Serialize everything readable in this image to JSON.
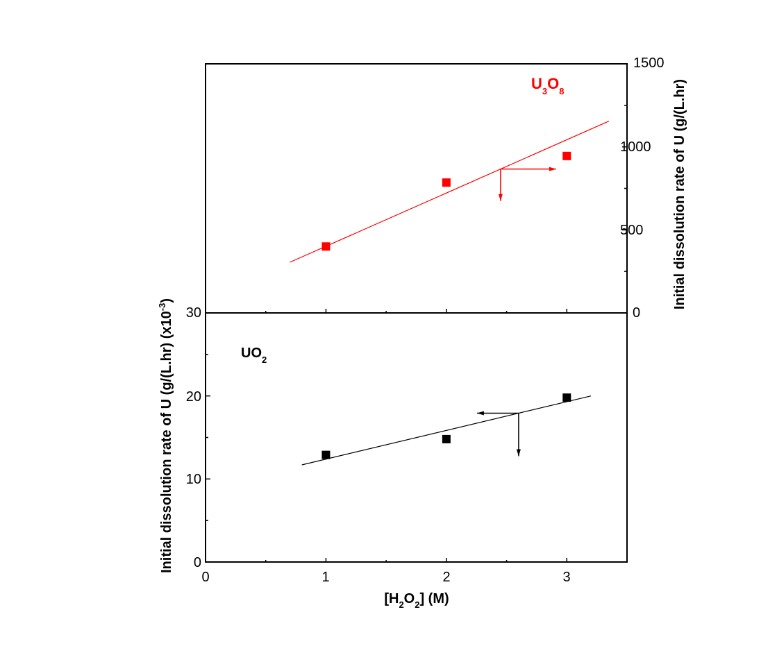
{
  "chart_data": [
    {
      "id": "top",
      "type": "scatter",
      "series": [
        {
          "name": "U3O8",
          "color": "#ff0000",
          "x": [
            1,
            2,
            3
          ],
          "y": [
            400,
            785,
            945
          ],
          "fit": {
            "x0": 0.7,
            "y0": 305,
            "x1": 3.35,
            "y1": 1155
          }
        }
      ],
      "label": {
        "main": "U",
        "sub1": "3",
        "mid": "O",
        "sub2": "8"
      },
      "xlim": [
        0,
        3.5
      ],
      "ylim": [
        0,
        1500
      ],
      "y_axis_side": "right",
      "yticks": [
        "0",
        "500",
        "1000",
        "1500"
      ],
      "ylabel": "Initial dissolution rate of U (g/(L.hr)",
      "arrow_direction": "right"
    },
    {
      "id": "bottom",
      "type": "scatter",
      "series": [
        {
          "name": "UO2",
          "color": "#000000",
          "x": [
            1,
            2,
            3
          ],
          "y": [
            12.9,
            14.8,
            19.8
          ],
          "fit": {
            "x0": 0.8,
            "y0": 11.7,
            "x1": 3.2,
            "y1": 20.0
          }
        }
      ],
      "label": {
        "main": "UO",
        "sub1": "2"
      },
      "xlim": [
        0,
        3.5
      ],
      "ylim": [
        0,
        30
      ],
      "y_axis_side": "left",
      "yticks": [
        "0",
        "10",
        "20",
        "30"
      ],
      "xticks": [
        "0",
        "1",
        "2",
        "3"
      ],
      "ylabel": {
        "main": "Initial dissolution rate of U (g/(L.hr) (x10",
        "sup": "-3",
        "end": ")"
      },
      "xlabel": {
        "pre": "[H",
        "sub1": "2",
        "mid": "O",
        "sub2": "2",
        "post": "] (M)"
      },
      "arrow_direction": "left"
    }
  ]
}
